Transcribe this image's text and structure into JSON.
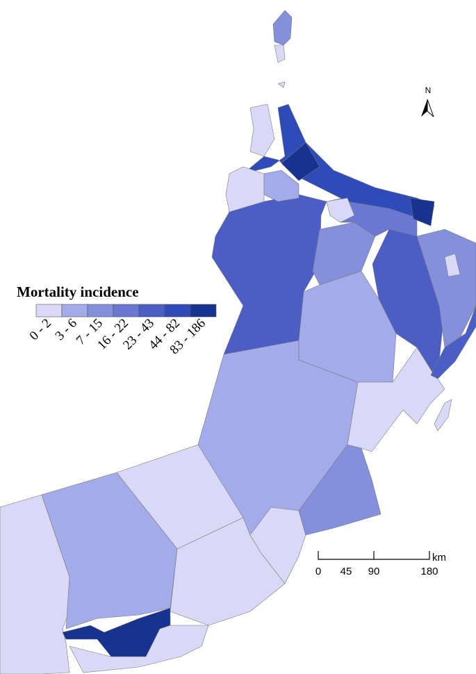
{
  "legend": {
    "title": "Mortality incidence",
    "classes": [
      {
        "label": "0 - 2",
        "color": "#d9d9f7"
      },
      {
        "label": "3 - 6",
        "color": "#a4abea"
      },
      {
        "label": "7 - 15",
        "color": "#8590dc"
      },
      {
        "label": "16 - 22",
        "color": "#6b78d3"
      },
      {
        "label": "23 - 43",
        "color": "#4a5ec6"
      },
      {
        "label": "44 - 82",
        "color": "#2f4bb8"
      },
      {
        "label": "83 - 186",
        "color": "#17338f"
      }
    ]
  },
  "north_arrow": {
    "label": "N"
  },
  "scale_bar": {
    "ticks": [
      0,
      45,
      90,
      180
    ],
    "unit": "km"
  }
}
